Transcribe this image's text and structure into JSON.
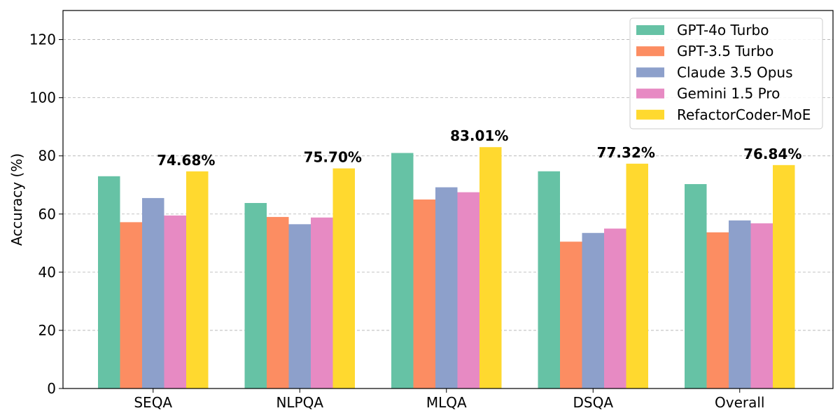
{
  "chart_data": {
    "type": "bar",
    "title": "",
    "xlabel": "",
    "ylabel": "Accuracy (%)",
    "ylim": [
      0,
      130
    ],
    "yticks": [
      0,
      20,
      40,
      60,
      80,
      100,
      120
    ],
    "grid": "horizontal dashed",
    "legend_position": "top-right",
    "categories": [
      "SEQA",
      "NLPQA",
      "MLQA",
      "DSQA",
      "Overall"
    ],
    "series": [
      {
        "name": "GPT-4o Turbo",
        "color": "#66c2a5",
        "values": [
          73.0,
          63.8,
          81.0,
          74.7,
          70.3
        ]
      },
      {
        "name": "GPT-3.5 Turbo",
        "color": "#fc8d62",
        "values": [
          57.2,
          59.0,
          65.0,
          50.5,
          53.7
        ]
      },
      {
        "name": "Claude 3.5 Opus",
        "color": "#8da0cb",
        "values": [
          65.5,
          56.5,
          69.2,
          53.5,
          57.8
        ]
      },
      {
        "name": "Gemini 1.5 Pro",
        "color": "#e78ac3",
        "values": [
          59.5,
          58.8,
          67.5,
          55.0,
          56.8
        ]
      },
      {
        "name": "RefactorCoder-MoE",
        "color": "#ffd92f",
        "values": [
          74.68,
          75.7,
          83.01,
          77.32,
          76.84
        ]
      }
    ],
    "annotations": [
      {
        "series": "RefactorCoder-MoE",
        "category": "SEQA",
        "text": "74.68%"
      },
      {
        "series": "RefactorCoder-MoE",
        "category": "NLPQA",
        "text": "75.70%"
      },
      {
        "series": "RefactorCoder-MoE",
        "category": "MLQA",
        "text": "83.01%"
      },
      {
        "series": "RefactorCoder-MoE",
        "category": "DSQA",
        "text": "77.32%"
      },
      {
        "series": "RefactorCoder-MoE",
        "category": "Overall",
        "text": "76.84%"
      }
    ]
  }
}
